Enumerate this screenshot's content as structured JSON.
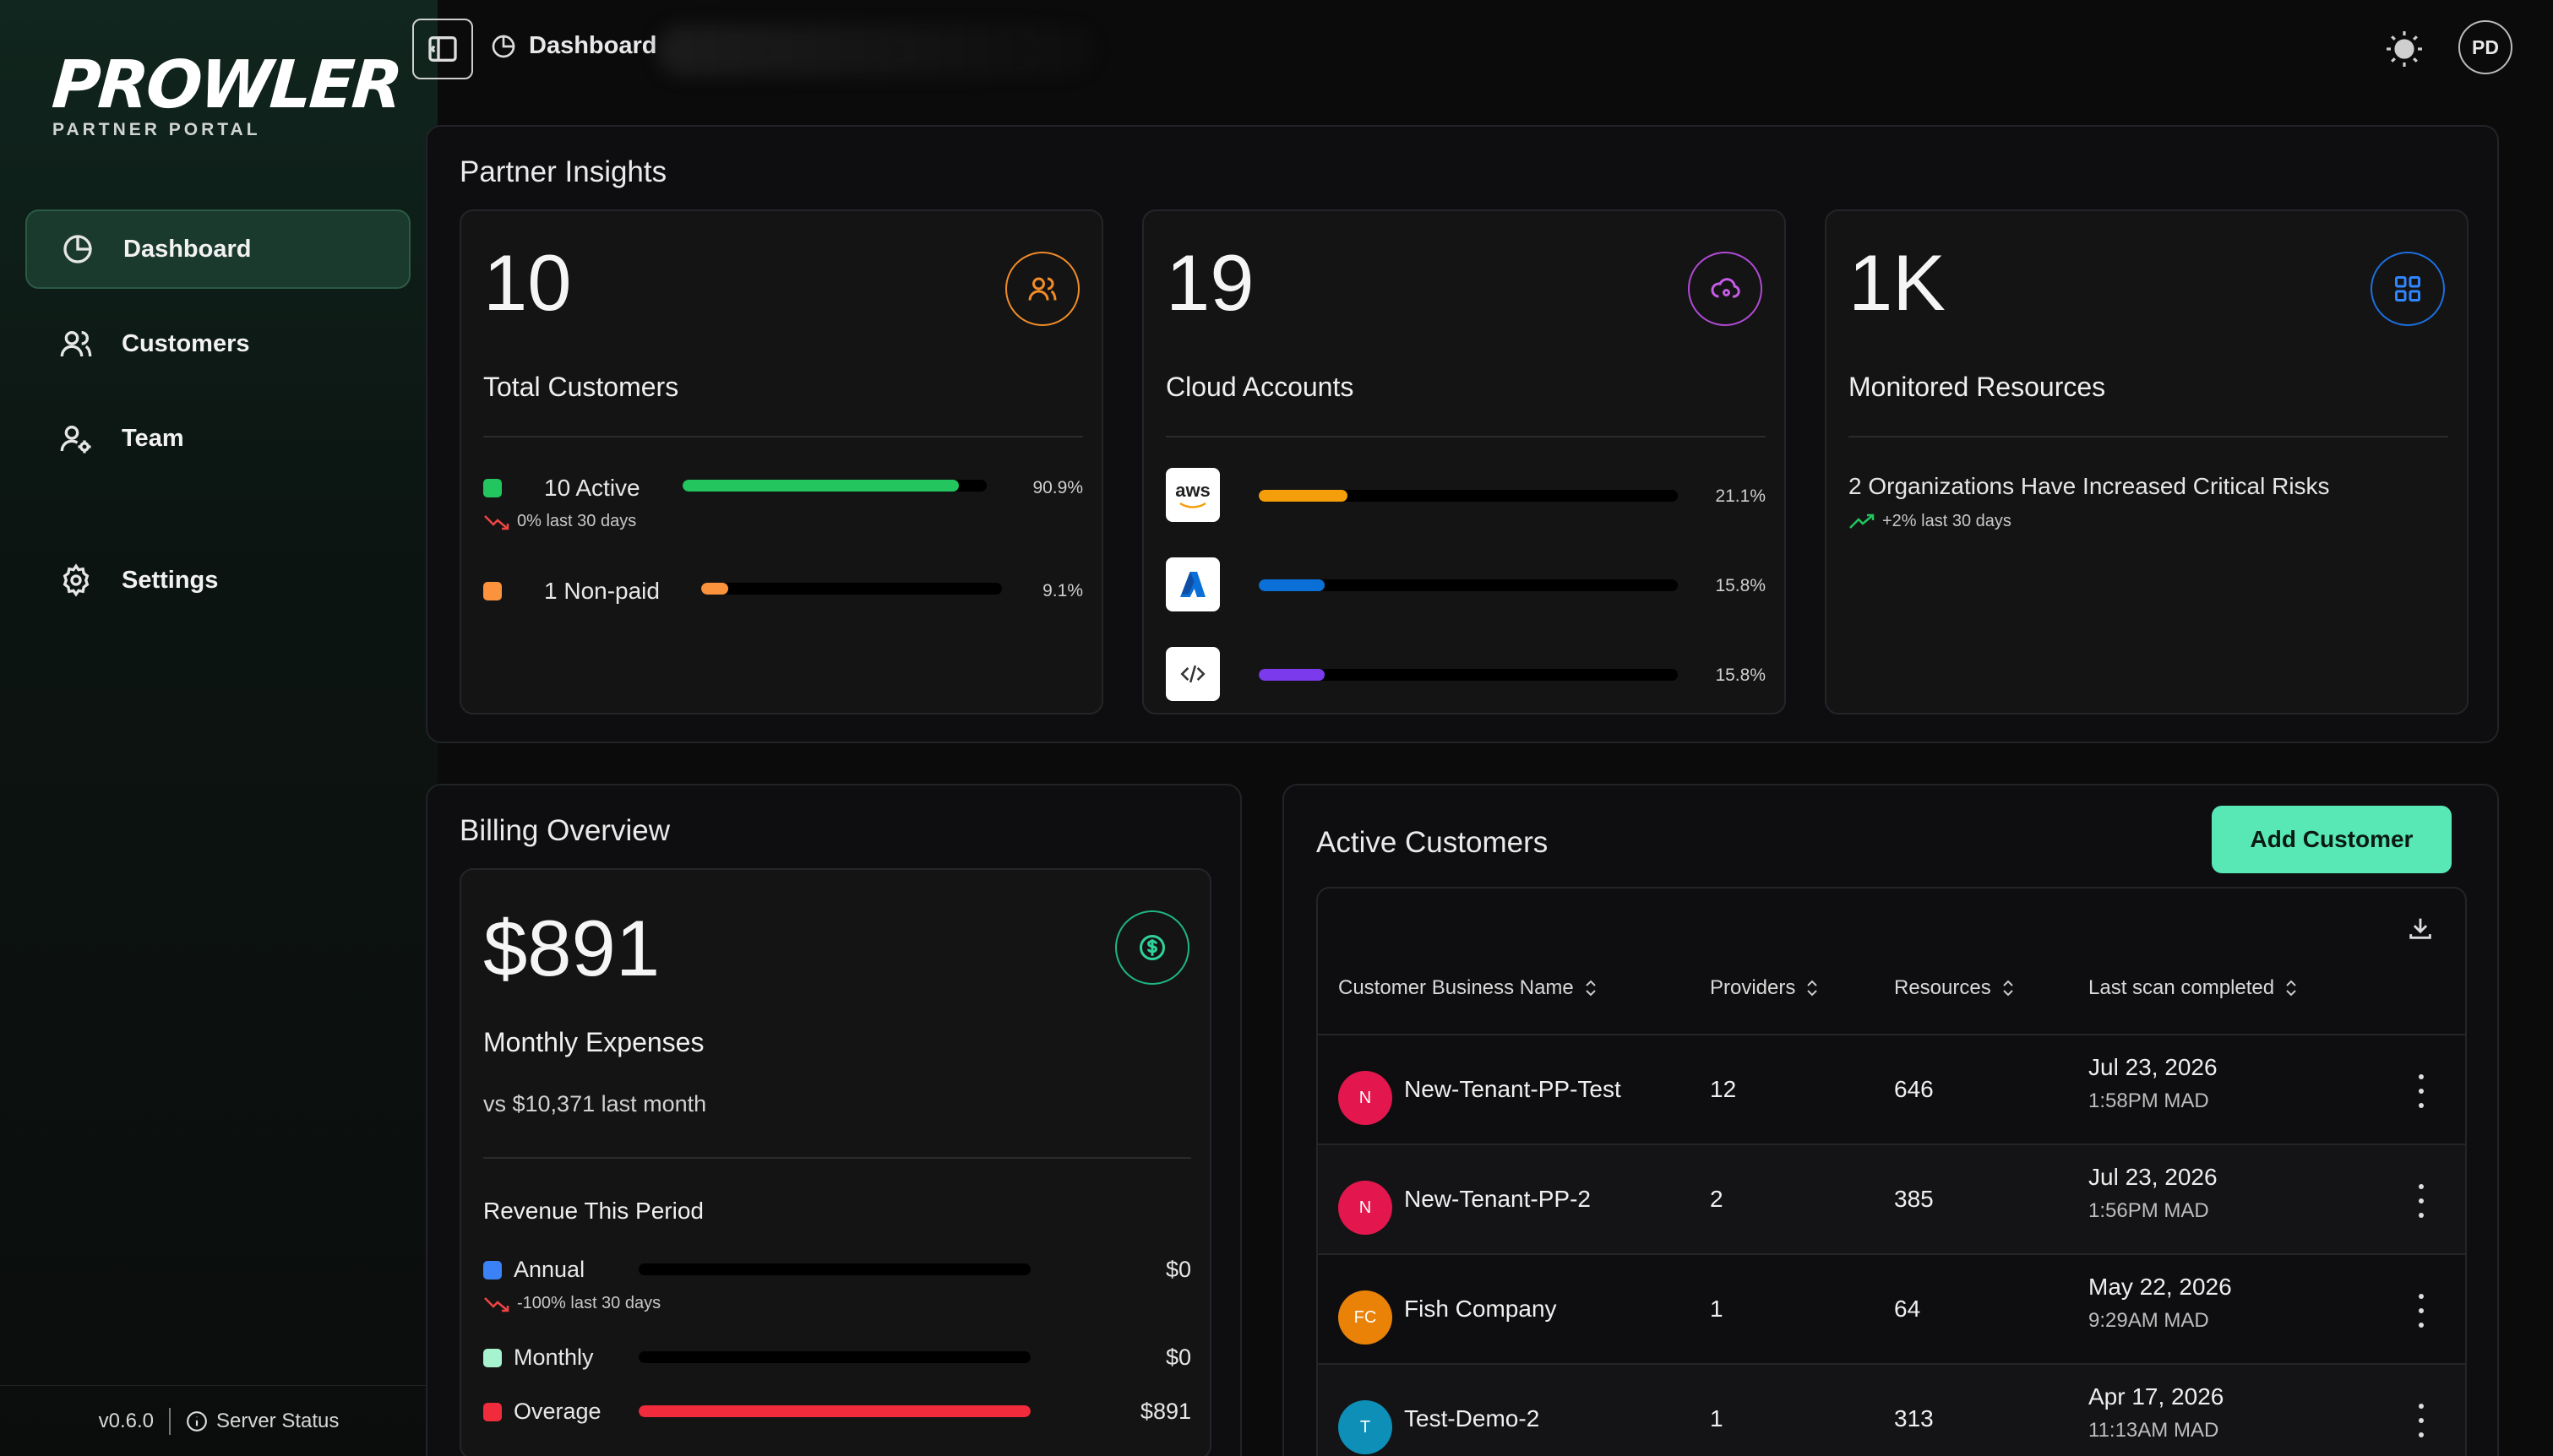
{
  "brand": {
    "name": "PROWLER",
    "subtitle": "PARTNER PORTAL"
  },
  "sidebar": {
    "items": [
      {
        "label": "Dashboard",
        "icon": "pie-chart-icon",
        "active": true
      },
      {
        "label": "Customers",
        "icon": "users-icon"
      },
      {
        "label": "Team",
        "icon": "user-gear-icon"
      },
      {
        "label": "Settings",
        "icon": "gear-icon"
      }
    ],
    "footer": {
      "version": "v0.6.0",
      "status_label": "Server Status"
    }
  },
  "topbar": {
    "breadcrumb": "Dashboard",
    "avatar_initials": "PD"
  },
  "insights": {
    "title": "Partner Insights",
    "customers": {
      "value": "10",
      "label": "Total Customers",
      "rows": [
        {
          "label": "10 Active",
          "pct_label": "90.9%",
          "fraction": 0.909,
          "color": "#22c55e"
        },
        {
          "label": "1 Non-paid",
          "pct_label": "9.1%",
          "fraction": 0.091,
          "color": "#fb923c"
        }
      ],
      "trend": {
        "value": "0%",
        "text": "last 30 days"
      }
    },
    "cloud": {
      "value": "19",
      "label": "Cloud Accounts",
      "providers": [
        {
          "name": "aws",
          "pct_label": "21.1%",
          "fraction": 0.211,
          "color": "#f59e0b"
        },
        {
          "name": "azure",
          "pct_label": "15.8%",
          "fraction": 0.158,
          "color": "#0a6fd6"
        },
        {
          "name": "code",
          "pct_label": "15.8%",
          "fraction": 0.158,
          "color": "#7c3aed"
        }
      ]
    },
    "resources": {
      "value": "1K",
      "label": "Monitored Resources",
      "note": "2 Organizations Have Increased Critical Risks",
      "trend": {
        "value": "+2%",
        "text": "last 30 days"
      }
    }
  },
  "billing": {
    "title": "Billing Overview",
    "amount": "$891",
    "label": "Monthly Expenses",
    "compare": "vs $10,371 last month",
    "revenue_title": "Revenue This Period",
    "rows": [
      {
        "label": "Annual",
        "value": "$0",
        "fraction": 0,
        "color": "#3b82f6"
      },
      {
        "label": "Monthly",
        "value": "$0",
        "fraction": 0,
        "color": "#a7f3d0"
      },
      {
        "label": "Overage",
        "value": "$891",
        "fraction": 1,
        "color": "#ef2b3c"
      }
    ],
    "trend": {
      "value": "-100%",
      "text": "last 30 days"
    }
  },
  "active_customers": {
    "title": "Active Customers",
    "add_label": "Add Customer",
    "columns": [
      "Customer Business Name",
      "Providers",
      "Resources",
      "Last scan completed"
    ],
    "rows": [
      {
        "initials": "N",
        "color": "#e3174e",
        "name": "New-Tenant-PP-Test",
        "providers": "12",
        "resources": "646",
        "date": "Jul 23, 2026",
        "time": "1:58PM MAD"
      },
      {
        "initials": "N",
        "color": "#e3174e",
        "name": "New-Tenant-PP-2",
        "providers": "2",
        "resources": "385",
        "date": "Jul 23, 2026",
        "time": "1:56PM MAD"
      },
      {
        "initials": "FC",
        "color": "#e98207",
        "name": "Fish Company",
        "providers": "1",
        "resources": "64",
        "date": "May 22, 2026",
        "time": "9:29AM MAD"
      },
      {
        "initials": "T",
        "color": "#0e8fb8",
        "name": "Test-Demo-2",
        "providers": "1",
        "resources": "313",
        "date": "Apr 17, 2026",
        "time": "11:13AM MAD"
      }
    ]
  }
}
